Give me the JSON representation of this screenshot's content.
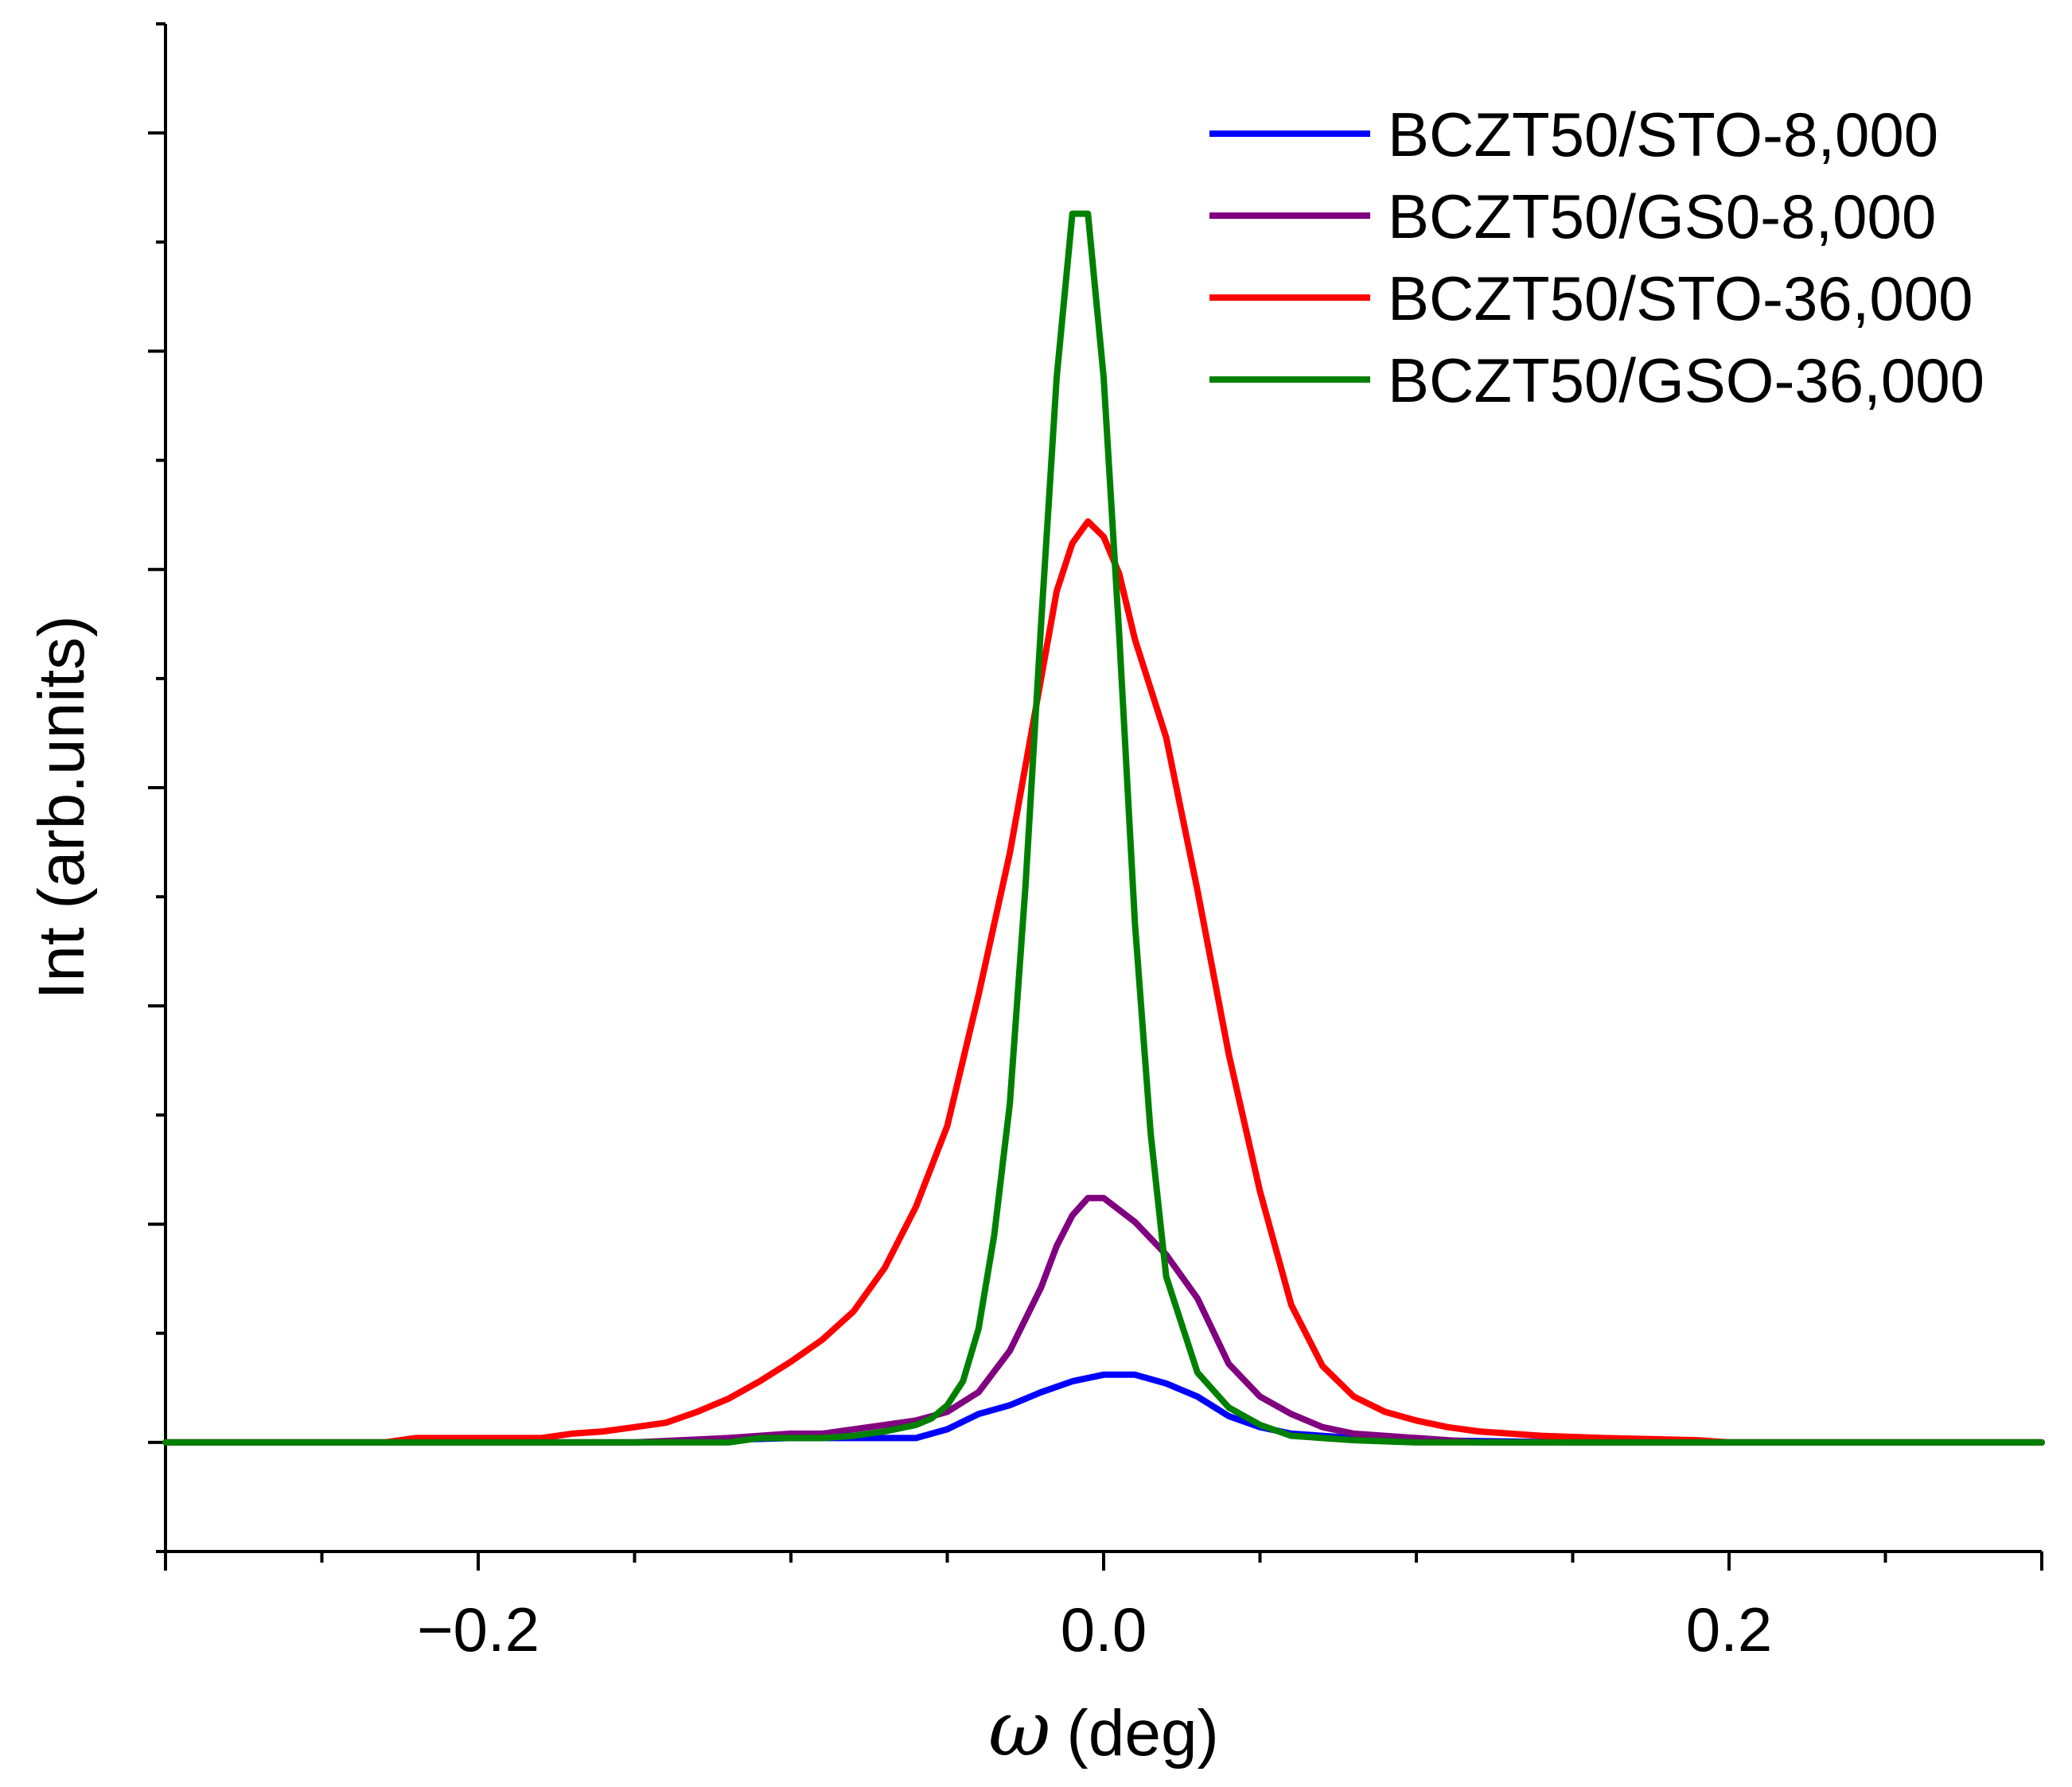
{
  "chart_data": {
    "type": "line",
    "title": "",
    "xlabel": "(deg)",
    "xlabel_symbol": "ω",
    "ylabel": "Int (arb.units)",
    "xlim": [
      -0.3,
      0.3
    ],
    "ylim": [
      -0.05,
      0.65
    ],
    "x_ticks": [
      -0.2,
      0.0,
      0.2
    ],
    "x_tick_labels": [
      "−0.2",
      "0.0",
      "0.2"
    ],
    "y_tick_labels_shown": false,
    "grid": false,
    "legend_position": "top-right",
    "series": [
      {
        "name": "BCZT50/STO-8,000",
        "color": "#0000ff",
        "points": [
          [
            -0.3,
            0.0
          ],
          [
            -0.22,
            0.0
          ],
          [
            -0.15,
            0.0
          ],
          [
            -0.1,
            0.002
          ],
          [
            -0.08,
            0.002
          ],
          [
            -0.06,
            0.002
          ],
          [
            -0.05,
            0.006
          ],
          [
            -0.04,
            0.013
          ],
          [
            -0.03,
            0.017
          ],
          [
            -0.02,
            0.023
          ],
          [
            -0.01,
            0.028
          ],
          [
            0.0,
            0.031
          ],
          [
            0.01,
            0.031
          ],
          [
            0.02,
            0.027
          ],
          [
            0.03,
            0.021
          ],
          [
            0.04,
            0.012
          ],
          [
            0.05,
            0.007
          ],
          [
            0.06,
            0.004
          ],
          [
            0.08,
            0.002
          ],
          [
            0.1,
            0.001
          ],
          [
            0.15,
            0.0
          ],
          [
            0.3,
            0.0
          ]
        ]
      },
      {
        "name": "BCZT50/GS0-8,000",
        "color": "#800080",
        "points": [
          [
            -0.3,
            0.0
          ],
          [
            -0.15,
            0.0
          ],
          [
            -0.12,
            0.002
          ],
          [
            -0.1,
            0.004
          ],
          [
            -0.09,
            0.004
          ],
          [
            -0.08,
            0.006
          ],
          [
            -0.07,
            0.008
          ],
          [
            -0.06,
            0.01
          ],
          [
            -0.05,
            0.014
          ],
          [
            -0.04,
            0.023
          ],
          [
            -0.03,
            0.042
          ],
          [
            -0.02,
            0.071
          ],
          [
            -0.015,
            0.09
          ],
          [
            -0.01,
            0.104
          ],
          [
            -0.005,
            0.112
          ],
          [
            0.0,
            0.112
          ],
          [
            0.01,
            0.101
          ],
          [
            0.02,
            0.086
          ],
          [
            0.03,
            0.066
          ],
          [
            0.04,
            0.036
          ],
          [
            0.05,
            0.021
          ],
          [
            0.06,
            0.013
          ],
          [
            0.07,
            0.007
          ],
          [
            0.08,
            0.004
          ],
          [
            0.1,
            0.002
          ],
          [
            0.12,
            0.0
          ],
          [
            0.3,
            0.0
          ]
        ]
      },
      {
        "name": "BCZT50/STO-36,000",
        "color": "#ff0000",
        "points": [
          [
            -0.3,
            0.0
          ],
          [
            -0.23,
            0.0
          ],
          [
            -0.22,
            0.002
          ],
          [
            -0.18,
            0.002
          ],
          [
            -0.17,
            0.004
          ],
          [
            -0.16,
            0.005
          ],
          [
            -0.15,
            0.007
          ],
          [
            -0.14,
            0.009
          ],
          [
            -0.13,
            0.014
          ],
          [
            -0.12,
            0.02
          ],
          [
            -0.11,
            0.028
          ],
          [
            -0.1,
            0.037
          ],
          [
            -0.09,
            0.047
          ],
          [
            -0.08,
            0.06
          ],
          [
            -0.07,
            0.08
          ],
          [
            -0.06,
            0.108
          ],
          [
            -0.05,
            0.145
          ],
          [
            -0.04,
            0.205
          ],
          [
            -0.03,
            0.27
          ],
          [
            -0.02,
            0.35
          ],
          [
            -0.015,
            0.39
          ],
          [
            -0.01,
            0.412
          ],
          [
            -0.005,
            0.422
          ],
          [
            0.0,
            0.415
          ],
          [
            0.005,
            0.398
          ],
          [
            0.01,
            0.368
          ],
          [
            0.02,
            0.323
          ],
          [
            0.03,
            0.253
          ],
          [
            0.04,
            0.178
          ],
          [
            0.05,
            0.115
          ],
          [
            0.06,
            0.063
          ],
          [
            0.07,
            0.035
          ],
          [
            0.08,
            0.021
          ],
          [
            0.09,
            0.014
          ],
          [
            0.1,
            0.01
          ],
          [
            0.11,
            0.007
          ],
          [
            0.12,
            0.005
          ],
          [
            0.14,
            0.003
          ],
          [
            0.16,
            0.002
          ],
          [
            0.19,
            0.001
          ],
          [
            0.2,
            0.0
          ],
          [
            0.3,
            0.0
          ]
        ]
      },
      {
        "name": "BCZT50/GSO-36,000",
        "color": "#008000",
        "points": [
          [
            -0.3,
            0.0
          ],
          [
            -0.12,
            0.0
          ],
          [
            -0.11,
            0.002
          ],
          [
            -0.09,
            0.002
          ],
          [
            -0.08,
            0.003
          ],
          [
            -0.07,
            0.005
          ],
          [
            -0.06,
            0.008
          ],
          [
            -0.055,
            0.011
          ],
          [
            -0.05,
            0.017
          ],
          [
            -0.045,
            0.028
          ],
          [
            -0.04,
            0.052
          ],
          [
            -0.035,
            0.095
          ],
          [
            -0.03,
            0.155
          ],
          [
            -0.025,
            0.255
          ],
          [
            -0.02,
            0.375
          ],
          [
            -0.015,
            0.488
          ],
          [
            -0.01,
            0.563
          ],
          [
            -0.005,
            0.563
          ],
          [
            0.0,
            0.488
          ],
          [
            0.005,
            0.37
          ],
          [
            0.01,
            0.238
          ],
          [
            0.015,
            0.142
          ],
          [
            0.02,
            0.076
          ],
          [
            0.03,
            0.032
          ],
          [
            0.04,
            0.016
          ],
          [
            0.05,
            0.008
          ],
          [
            0.06,
            0.003
          ],
          [
            0.08,
            0.001
          ],
          [
            0.1,
            0.0
          ],
          [
            0.3,
            0.0
          ]
        ]
      }
    ]
  }
}
